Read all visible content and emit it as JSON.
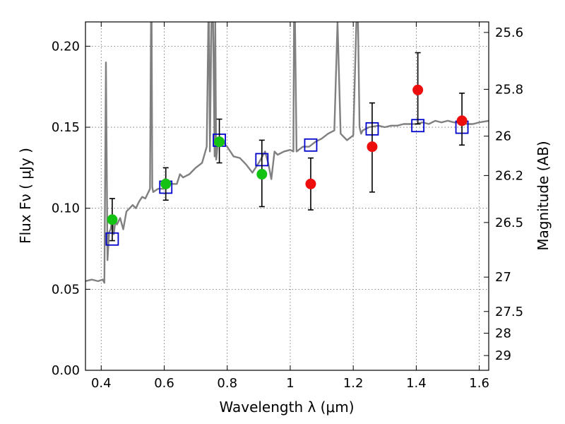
{
  "chart_data": {
    "type": "scatter",
    "title": "",
    "xlabel": "Wavelength  λ (μm)",
    "ylabel": "Flux  Fν  ( μJy )",
    "y2label": "Magnitude (AB)",
    "xlim": [
      0.35,
      1.63
    ],
    "ylim": [
      0.0,
      0.215
    ],
    "grid": true,
    "xticks": [
      {
        "value": 0.4,
        "label": "0.4"
      },
      {
        "value": 0.6,
        "label": "0.6"
      },
      {
        "value": 0.8,
        "label": "0.8"
      },
      {
        "value": 1.0,
        "label": "1"
      },
      {
        "value": 1.2,
        "label": "1.2"
      },
      {
        "value": 1.4,
        "label": "1.4"
      },
      {
        "value": 1.6,
        "label": "1.6"
      }
    ],
    "yticks": [
      {
        "value": 0.0,
        "label": "0.00"
      },
      {
        "value": 0.05,
        "label": "0.05"
      },
      {
        "value": 0.1,
        "label": "0.10"
      },
      {
        "value": 0.15,
        "label": "0.15"
      },
      {
        "value": 0.2,
        "label": "0.20"
      }
    ],
    "y2ticks": [
      {
        "flux": 0.2085,
        "label": "25.6"
      },
      {
        "flux": 0.1734,
        "label": "25.8"
      },
      {
        "flux": 0.1445,
        "label": "26"
      },
      {
        "flux": 0.1202,
        "label": "26.2"
      },
      {
        "flux": 0.0912,
        "label": "26.5"
      },
      {
        "flux": 0.0575,
        "label": "27"
      },
      {
        "flux": 0.0363,
        "label": "27.5"
      },
      {
        "flux": 0.0229,
        "label": "28"
      },
      {
        "flux": 0.0091,
        "label": "29"
      }
    ],
    "colors": {
      "model": "#808080",
      "green": "#14c214",
      "red": "#ee0d0d",
      "box": "#0000cc",
      "errorbar": "#000000"
    },
    "model_spectrum": {
      "x": [
        0.35,
        0.37,
        0.39,
        0.405,
        0.41,
        0.415,
        0.42,
        0.425,
        0.43,
        0.435,
        0.44,
        0.445,
        0.45,
        0.46,
        0.47,
        0.48,
        0.49,
        0.5,
        0.51,
        0.52,
        0.53,
        0.54,
        0.55,
        0.555,
        0.558,
        0.56,
        0.562,
        0.565,
        0.58,
        0.6,
        0.62,
        0.64,
        0.65,
        0.66,
        0.68,
        0.7,
        0.72,
        0.735,
        0.74,
        0.742,
        0.745,
        0.75,
        0.755,
        0.76,
        0.762,
        0.765,
        0.77,
        0.78,
        0.8,
        0.82,
        0.84,
        0.86,
        0.88,
        0.9,
        0.92,
        0.93,
        0.94,
        0.95,
        0.96,
        0.98,
        1.0,
        1.01,
        1.012,
        1.015,
        1.02,
        1.04,
        1.06,
        1.08,
        1.1,
        1.12,
        1.14,
        1.15,
        1.16,
        1.18,
        1.2,
        1.21,
        1.215,
        1.22,
        1.225,
        1.23,
        1.25,
        1.28,
        1.3,
        1.32,
        1.34,
        1.36,
        1.38,
        1.4,
        1.42,
        1.44,
        1.46,
        1.48,
        1.5,
        1.52,
        1.54,
        1.56,
        1.58,
        1.6,
        1.63
      ],
      "y": [
        0.055,
        0.056,
        0.055,
        0.056,
        0.054,
        0.19,
        0.068,
        0.085,
        0.087,
        0.094,
        0.084,
        0.092,
        0.09,
        0.094,
        0.087,
        0.098,
        0.1,
        0.102,
        0.1,
        0.104,
        0.107,
        0.106,
        0.11,
        0.112,
        0.215,
        0.215,
        0.113,
        0.11,
        0.112,
        0.112,
        0.115,
        0.115,
        0.121,
        0.119,
        0.121,
        0.125,
        0.128,
        0.138,
        0.215,
        0.215,
        0.135,
        0.215,
        0.215,
        0.132,
        0.215,
        0.13,
        0.14,
        0.142,
        0.138,
        0.132,
        0.131,
        0.127,
        0.122,
        0.128,
        0.135,
        0.128,
        0.118,
        0.135,
        0.133,
        0.135,
        0.136,
        0.135,
        0.215,
        0.215,
        0.135,
        0.138,
        0.138,
        0.141,
        0.143,
        0.146,
        0.148,
        0.215,
        0.146,
        0.142,
        0.145,
        0.215,
        0.215,
        0.15,
        0.146,
        0.148,
        0.15,
        0.151,
        0.15,
        0.151,
        0.151,
        0.152,
        0.152,
        0.152,
        0.153,
        0.152,
        0.154,
        0.153,
        0.154,
        0.153,
        0.153,
        0.152,
        0.152,
        0.153,
        0.154
      ]
    },
    "series": [
      {
        "marker": "open-square",
        "color": "#0000cc",
        "x": [
          0.435,
          0.605,
          0.775,
          0.91,
          1.065,
          1.26,
          1.405,
          1.545
        ],
        "y": [
          0.081,
          0.113,
          0.142,
          0.13,
          0.139,
          0.149,
          0.151,
          0.15
        ]
      },
      {
        "marker": "filled-circle",
        "color": "#14c214",
        "x": [
          0.435,
          0.605,
          0.775,
          0.91
        ],
        "y": [
          0.093,
          0.115,
          0.141,
          0.121
        ],
        "err_low": [
          0.013,
          0.01,
          0.013,
          0.02
        ],
        "err_high": [
          0.013,
          0.01,
          0.014,
          0.021
        ]
      },
      {
        "marker": "filled-circle",
        "color": "#ee0d0d",
        "x": [
          1.065,
          1.26,
          1.405,
          1.545
        ],
        "y": [
          0.115,
          0.138,
          0.173,
          0.154
        ],
        "err_low": [
          0.016,
          0.028,
          0.021,
          0.015
        ],
        "err_high": [
          0.016,
          0.027,
          0.023,
          0.017
        ]
      }
    ]
  }
}
